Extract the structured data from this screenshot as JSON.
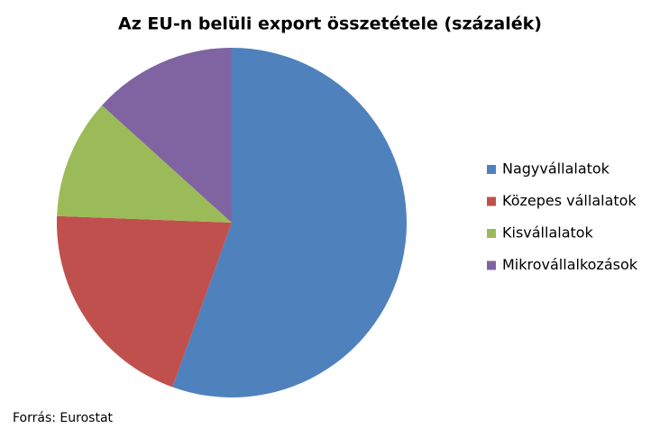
{
  "chart_data": {
    "type": "pie",
    "title": "Az EU-n belüli export összetétele (százalék)",
    "categories": [
      "Nagyvállalatok",
      "Közepes vállalatok",
      "Kisvállalatok",
      "Mikrovállalkozások"
    ],
    "values": [
      55.5,
      20.1,
      11.1,
      13.3
    ],
    "colors": [
      "#4f81bd",
      "#c0504d",
      "#9bbb59",
      "#8064a2"
    ],
    "legend": "right",
    "source": "Forrás: Eurostat"
  }
}
